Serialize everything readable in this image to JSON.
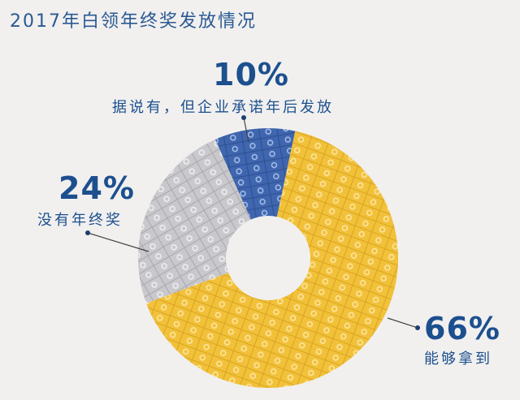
{
  "title": "2017年白领年终奖发放情况",
  "labels": {
    "blue": {
      "pct": "10%",
      "text": "据说有，但企业承诺年后发放"
    },
    "grey": {
      "pct": "24%",
      "text": "没有年终奖"
    },
    "yellow": {
      "pct": "66%",
      "text": "能够拿到"
    }
  },
  "colors": {
    "yellow": "#f2c13a",
    "grey": "#c9c8cc",
    "blue": "#3f66ae",
    "text": "#1c4f8e",
    "background": "#f1f0ef"
  },
  "chart_data": {
    "type": "pie",
    "variant": "donut",
    "title": "2017年白领年终奖发放情况",
    "categories": [
      "能够拿到",
      "没有年终奖",
      "据说有，但企业承诺年后发放"
    ],
    "values": [
      66,
      24,
      10
    ],
    "unit": "%",
    "colors": [
      "#f2c13a",
      "#c9c8cc",
      "#3f66ae"
    ]
  }
}
